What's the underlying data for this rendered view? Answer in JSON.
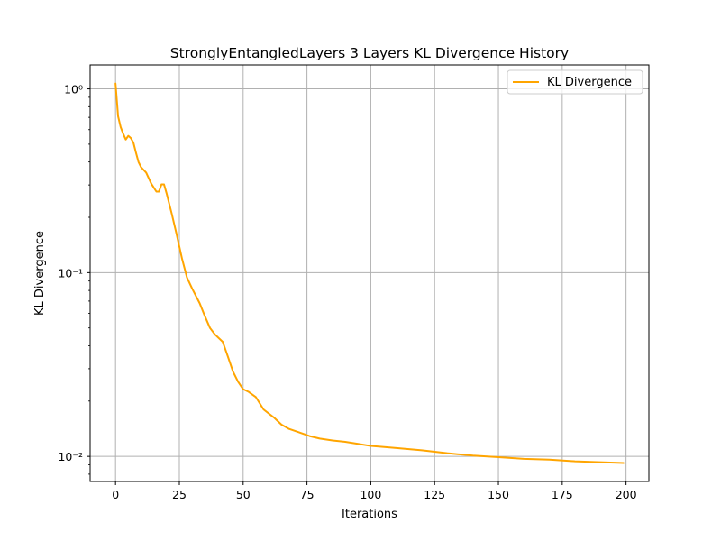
{
  "chart_data": {
    "type": "line",
    "title": "StronglyEntangledLayers 3 Layers KL Divergence History",
    "xlabel": "Iterations",
    "ylabel": "KL Divergence",
    "yscale": "log",
    "xlim": [
      -9.95,
      208.95
    ],
    "ylim": [
      0.0073,
      1.35
    ],
    "xticks": [
      0,
      25,
      50,
      75,
      100,
      125,
      150,
      175,
      200
    ],
    "xtick_labels": [
      "0",
      "25",
      "50",
      "75",
      "100",
      "125",
      "150",
      "175",
      "200"
    ],
    "yticks": [
      0.01,
      0.1,
      1
    ],
    "ytick_labels": [
      "10⁻²",
      "10⁻¹",
      "10⁰"
    ],
    "grid": true,
    "legend_position": "top-right",
    "series": [
      {
        "name": "KL Divergence",
        "color": "#ffa500",
        "x": [
          0,
          1,
          2,
          3,
          4,
          5,
          6,
          7,
          8,
          9,
          10,
          12,
          14,
          16,
          17,
          18,
          19,
          20,
          22,
          24,
          26,
          28,
          30,
          33,
          35,
          37,
          39,
          42,
          44,
          46,
          48,
          50,
          52,
          55,
          58,
          62,
          65,
          68,
          72,
          76,
          80,
          85,
          90,
          95,
          100,
          110,
          120,
          130,
          140,
          150,
          160,
          170,
          180,
          190,
          199
        ],
        "y": [
          1.07,
          0.71,
          0.62,
          0.57,
          0.53,
          0.555,
          0.54,
          0.51,
          0.45,
          0.4,
          0.375,
          0.35,
          0.305,
          0.276,
          0.276,
          0.302,
          0.302,
          0.27,
          0.21,
          0.16,
          0.12,
          0.094,
          0.082,
          0.068,
          0.058,
          0.05,
          0.046,
          0.042,
          0.035,
          0.029,
          0.0255,
          0.0232,
          0.0225,
          0.021,
          0.018,
          0.0163,
          0.0149,
          0.0141,
          0.0135,
          0.0129,
          0.0125,
          0.0122,
          0.012,
          0.0117,
          0.0114,
          0.0111,
          0.0108,
          0.0104,
          0.0101,
          0.0099,
          0.0097,
          0.0096,
          0.0094,
          0.0093,
          0.0092
        ]
      }
    ]
  }
}
